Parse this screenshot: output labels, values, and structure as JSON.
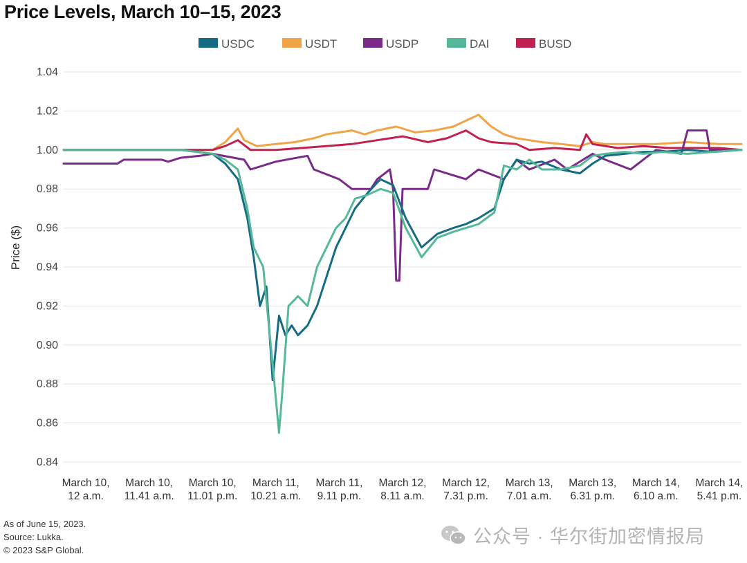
{
  "chart_data": {
    "type": "line",
    "title": "Price Levels, March 10–15, 2023",
    "ylabel": "Price ($)",
    "xlabel": "",
    "ylim": [
      0.84,
      1.04
    ],
    "yticks": [
      "1.04",
      "1.02",
      "1.00",
      "0.98",
      "0.96",
      "0.94",
      "0.92",
      "0.90",
      "0.88",
      "0.86",
      "0.84"
    ],
    "grid": "horizontal",
    "legend_position": "top",
    "x_tick_labels": [
      [
        "March 10,",
        "12 a.m."
      ],
      [
        "March 10,",
        "11.41 a.m."
      ],
      [
        "March 10,",
        "11.01 p.m."
      ],
      [
        "March 11,",
        "10.21 a.m."
      ],
      [
        "March 11,",
        "9.11 p.m."
      ],
      [
        "March 12,",
        "8.11 a.m."
      ],
      [
        "March 12,",
        "7.31 p.m."
      ],
      [
        "March 13,",
        "7.01 a.m."
      ],
      [
        "March 13,",
        "6.31 p.m."
      ],
      [
        "March 14,",
        "6.10 a.m."
      ],
      [
        "March 14,",
        "5.41 p.m."
      ]
    ],
    "x_tick_positions": [
      0,
      1,
      2,
      3,
      4,
      5,
      6,
      7,
      8,
      9,
      10
    ],
    "x_range": [
      -0.35,
      10.35
    ],
    "series": [
      {
        "name": "USDC",
        "color": "#156b82",
        "x": [
          -0.35,
          1.5,
          2.0,
          2.2,
          2.4,
          2.55,
          2.65,
          2.75,
          2.85,
          2.95,
          3.05,
          3.15,
          3.25,
          3.35,
          3.5,
          3.65,
          3.8,
          3.95,
          4.1,
          4.25,
          4.45,
          4.65,
          4.85,
          5.05,
          5.3,
          5.55,
          5.8,
          6.0,
          6.2,
          6.45,
          6.6,
          6.8,
          7.0,
          7.2,
          7.5,
          7.8,
          8.0,
          8.2,
          8.5,
          8.8,
          9.1,
          9.5,
          9.9,
          10.35
        ],
        "y": [
          1.0,
          1.0,
          0.998,
          0.993,
          0.985,
          0.965,
          0.945,
          0.92,
          0.93,
          0.882,
          0.915,
          0.905,
          0.91,
          0.905,
          0.91,
          0.92,
          0.935,
          0.95,
          0.96,
          0.97,
          0.978,
          0.985,
          0.982,
          0.965,
          0.95,
          0.957,
          0.96,
          0.962,
          0.965,
          0.97,
          0.985,
          0.995,
          0.993,
          0.994,
          0.99,
          0.988,
          0.993,
          0.997,
          0.998,
          0.999,
          0.999,
          1.0,
          0.999,
          1.0
        ]
      },
      {
        "name": "USDT",
        "color": "#f0a447",
        "x": [
          -0.35,
          1.5,
          2.0,
          2.2,
          2.4,
          2.5,
          2.7,
          3.0,
          3.3,
          3.6,
          3.8,
          4.0,
          4.2,
          4.4,
          4.6,
          4.9,
          5.2,
          5.5,
          5.8,
          6.0,
          6.2,
          6.4,
          6.6,
          6.8,
          7.0,
          7.2,
          7.5,
          7.8,
          8.0,
          8.2,
          8.6,
          9.0,
          9.5,
          10.0,
          10.35
        ],
        "y": [
          1.0,
          1.0,
          1.0,
          1.004,
          1.011,
          1.005,
          1.002,
          1.003,
          1.004,
          1.006,
          1.008,
          1.009,
          1.01,
          1.008,
          1.01,
          1.012,
          1.009,
          1.01,
          1.012,
          1.015,
          1.018,
          1.012,
          1.008,
          1.006,
          1.005,
          1.004,
          1.003,
          1.002,
          1.004,
          1.003,
          1.003,
          1.003,
          1.004,
          1.003,
          1.003
        ]
      },
      {
        "name": "USDP",
        "color": "#7a2a88",
        "x": [
          -0.35,
          0.5,
          0.6,
          1.2,
          1.3,
          1.5,
          1.8,
          2.0,
          2.5,
          2.6,
          3.0,
          3.5,
          3.6,
          4.0,
          4.2,
          4.5,
          4.6,
          4.8,
          4.85,
          4.9,
          4.95,
          5.0,
          5.4,
          5.5,
          6.0,
          6.2,
          6.6,
          6.8,
          7.0,
          7.4,
          7.6,
          8.0,
          8.2,
          8.6,
          8.8,
          9.0,
          9.4,
          9.5,
          9.8,
          9.85,
          10.0,
          10.35
        ],
        "y": [
          0.993,
          0.993,
          0.995,
          0.995,
          0.994,
          0.996,
          0.997,
          0.998,
          0.995,
          0.99,
          0.994,
          0.997,
          0.99,
          0.985,
          0.98,
          0.98,
          0.985,
          0.99,
          0.98,
          0.933,
          0.933,
          0.98,
          0.98,
          0.99,
          0.985,
          0.99,
          0.985,
          0.995,
          0.99,
          0.995,
          0.99,
          0.998,
          0.995,
          0.99,
          0.995,
          1.0,
          0.998,
          1.01,
          1.01,
          1.0,
          1.0,
          1.0
        ]
      },
      {
        "name": "DAI",
        "color": "#55b89b",
        "x": [
          -0.35,
          1.5,
          2.0,
          2.2,
          2.4,
          2.55,
          2.65,
          2.8,
          2.95,
          3.05,
          3.1,
          3.2,
          3.35,
          3.5,
          3.65,
          3.8,
          3.95,
          4.1,
          4.25,
          4.45,
          4.65,
          4.85,
          5.05,
          5.3,
          5.55,
          5.8,
          6.0,
          6.2,
          6.45,
          6.6,
          6.8,
          7.0,
          7.2,
          7.5,
          7.8,
          8.0,
          8.2,
          8.5,
          8.8,
          9.1,
          9.5,
          9.9,
          10.35
        ],
        "y": [
          1.0,
          1.0,
          0.998,
          0.995,
          0.99,
          0.97,
          0.95,
          0.94,
          0.89,
          0.855,
          0.875,
          0.92,
          0.925,
          0.92,
          0.94,
          0.95,
          0.96,
          0.965,
          0.975,
          0.977,
          0.98,
          0.978,
          0.96,
          0.945,
          0.955,
          0.958,
          0.96,
          0.962,
          0.968,
          0.992,
          0.99,
          0.995,
          0.99,
          0.99,
          0.992,
          0.997,
          0.998,
          0.999,
          0.998,
          0.999,
          0.998,
          0.999,
          1.0
        ]
      },
      {
        "name": "BUSD",
        "color": "#c2204f",
        "x": [
          -0.35,
          1.5,
          2.0,
          2.2,
          2.4,
          2.6,
          3.0,
          3.4,
          3.8,
          4.2,
          4.6,
          5.0,
          5.4,
          5.7,
          6.0,
          6.2,
          6.4,
          6.8,
          7.0,
          7.4,
          7.8,
          7.9,
          8.0,
          8.4,
          8.8,
          9.2,
          9.6,
          10.0,
          10.35
        ],
        "y": [
          1.0,
          1.0,
          1.0,
          1.002,
          1.005,
          1.0,
          1.0,
          1.001,
          1.002,
          1.003,
          1.005,
          1.007,
          1.004,
          1.006,
          1.01,
          1.006,
          1.004,
          1.003,
          1.0,
          1.001,
          1.0,
          1.008,
          1.003,
          1.001,
          1.002,
          1.001,
          1.001,
          1.001,
          1.0
        ]
      }
    ]
  },
  "notes": {
    "line1": "As of June 15, 2023.",
    "line2": "Source: Lukka.",
    "line3": "© 2023 S&P Global."
  },
  "watermark": {
    "text": "公众号 · 华尔街加密情报局",
    "icon": "wechat-icon"
  }
}
